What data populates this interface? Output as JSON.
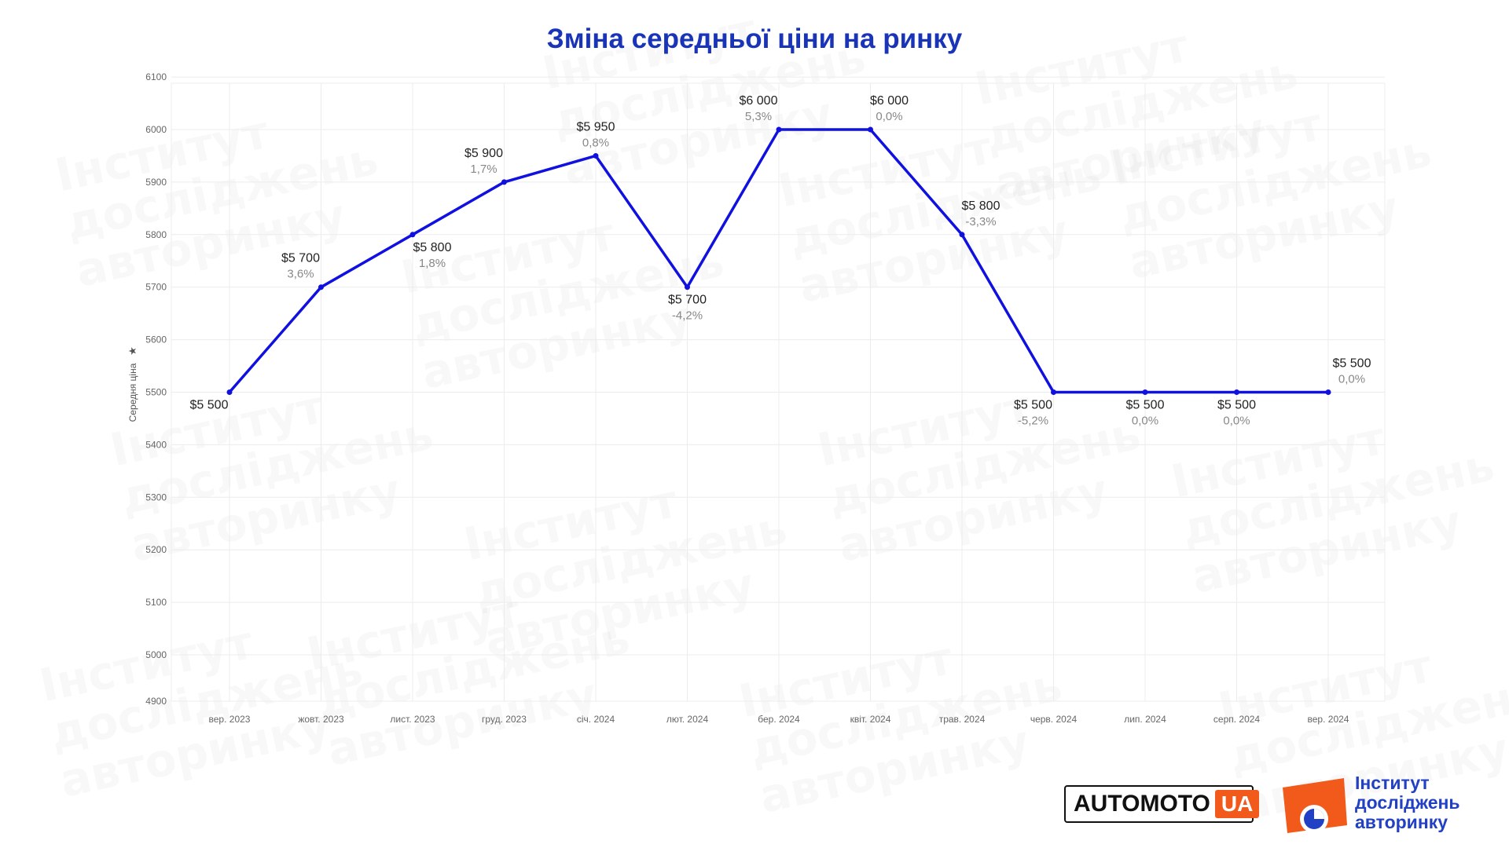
{
  "title": "Зміна середньої ціни на ринку",
  "watermark": [
    "Інститут",
    "досліджень",
    "авторинку"
  ],
  "colors": {
    "line": "#1010e0",
    "title": "#1a34b8",
    "accent": "#f25a1c",
    "brand_blue": "#2240c4"
  },
  "chart_data": {
    "type": "line",
    "title": "Зміна середньої ціни на ринку",
    "ylabel": "Середня ціна",
    "xlabel": "",
    "ylim": [
      4900,
      6100
    ],
    "yticks": [
      "4900",
      "5000",
      "5100",
      "5200",
      "5300",
      "5400",
      "5500",
      "5600",
      "5700",
      "5800",
      "5900",
      "6000",
      "6100"
    ],
    "categories": [
      "вер. 2023",
      "жовт. 2023",
      "лист. 2023",
      "груд. 2023",
      "січ. 2024",
      "лют. 2024",
      "бер. 2024",
      "квіт. 2024",
      "трав. 2024",
      "черв. 2024",
      "лип. 2024",
      "серп. 2024",
      "вер. 2024"
    ],
    "values": [
      5500,
      5700,
      5800,
      5900,
      5950,
      5700,
      6000,
      6000,
      5800,
      5500,
      5500,
      5500,
      5500
    ],
    "price_labels": [
      "$5 500",
      "$5 700",
      "$5 800",
      "$5 900",
      "$5 950",
      "$5 700",
      "$6 000",
      "$6 000",
      "$5 800",
      "$5 500",
      "$5 500",
      "$5 500",
      "$5 500"
    ],
    "change_labels": [
      "",
      "3,6%",
      "1,8%",
      "1,7%",
      "0,8%",
      "-4,2%",
      "5,3%",
      "0,0%",
      "-3,3%",
      "-5,2%",
      "0,0%",
      "0,0%",
      "0,0%"
    ],
    "grid": true,
    "legend": "none"
  },
  "logos": {
    "automoto_text": "AUTOMOTO",
    "automoto_ua": "UA",
    "institute_lines": [
      "Інститут",
      "досліджень",
      "авторинку"
    ]
  }
}
